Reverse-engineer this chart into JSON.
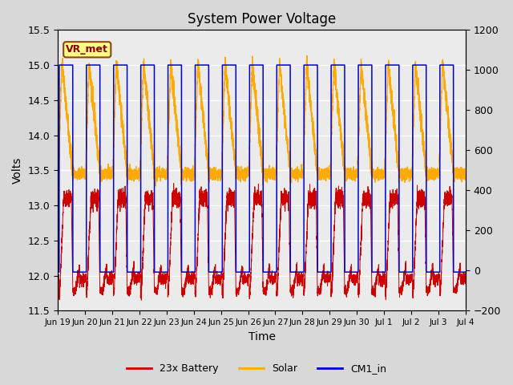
{
  "title": "System Power Voltage",
  "xlabel": "Time",
  "ylabel_left": "Volts",
  "ylim_left": [
    11.5,
    15.5
  ],
  "ylim_right": [
    -200,
    1200
  ],
  "x_tick_labels": [
    "Jun 19",
    "Jun 20",
    "Jun 21",
    "Jun 22",
    "Jun 23",
    "Jun 24",
    "Jun 25",
    "Jun 26",
    "Jun 27",
    "Jun 28",
    "Jun 29",
    "Jun 30",
    "Jul 1",
    "Jul 2",
    "Jul 3",
    "Jul 4"
  ],
  "annotation_text": "VR_met",
  "legend_labels": [
    "23x Battery",
    "Solar",
    "CM1_in"
  ],
  "legend_colors": [
    "#cc0000",
    "#ffaa00",
    "#0000cc"
  ],
  "bg_color": "#d8d8d8",
  "plot_bg_color": "#ebebeb",
  "num_days": 15,
  "ppd": 480
}
